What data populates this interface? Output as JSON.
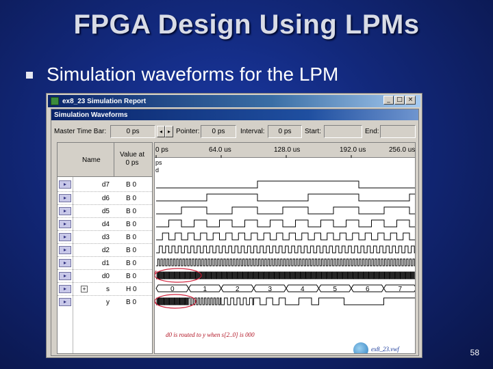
{
  "slide": {
    "title": "FPGA Design Using LPMs",
    "bullet": "Simulation waveforms for the LPM",
    "page_number": "58"
  },
  "window": {
    "title": "ex8_23 Simulation Report",
    "subtitle": "Simulation Waveforms",
    "buttons": {
      "minimize": "_",
      "restore": "□",
      "close": "×"
    }
  },
  "toolbar": {
    "master_time_bar_label": "Master Time Bar:",
    "master_time_bar_value": "0 ps",
    "pointer_label": "Pointer:",
    "pointer_value": "0 ps",
    "interval_label": "Interval:",
    "interval_value": "0 ps",
    "start_label": "Start:",
    "start_value": "",
    "end_label": "End:",
    "end_value": ""
  },
  "columns": {
    "name": "Name",
    "value_line1": "Value at",
    "value_line2": "0 ps"
  },
  "time_ticks": [
    "0 ps",
    "64.0 us",
    "128.0 us",
    "192.0 us",
    "256.0 us"
  ],
  "time_header_extra": [
    "ps",
    "d"
  ],
  "signals": [
    {
      "name": "d7",
      "value": "B 0",
      "icon": "input-pin-icon"
    },
    {
      "name": "d6",
      "value": "B 0",
      "icon": "input-pin-icon"
    },
    {
      "name": "d5",
      "value": "B 0",
      "icon": "input-pin-icon"
    },
    {
      "name": "d4",
      "value": "B 0",
      "icon": "input-pin-icon"
    },
    {
      "name": "d3",
      "value": "B 0",
      "icon": "input-pin-icon"
    },
    {
      "name": "d2",
      "value": "B 0",
      "icon": "input-pin-icon"
    },
    {
      "name": "d1",
      "value": "B 0",
      "icon": "input-pin-icon"
    },
    {
      "name": "d0",
      "value": "B 0",
      "icon": "input-pin-icon"
    },
    {
      "name": "s",
      "value": "H 0",
      "icon": "bus-pin-icon",
      "expandable": true
    },
    {
      "name": "y",
      "value": "B 0",
      "icon": "output-pin-icon"
    }
  ],
  "select_values": [
    "0",
    "1",
    "2",
    "3",
    "4",
    "5",
    "6",
    "7"
  ],
  "annotation": "d0 is routed to y when s[2..0] is 000",
  "file_label": "ex8_23.vwf"
}
